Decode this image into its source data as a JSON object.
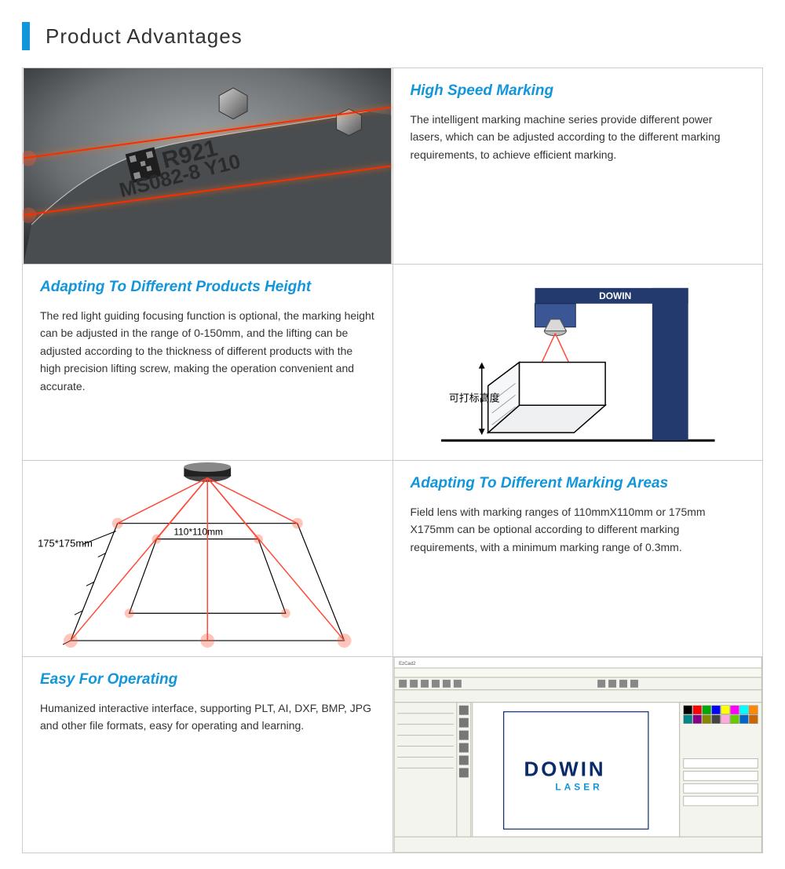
{
  "page_title": "Product Advantages",
  "colors": {
    "accent_blue": "#1296db",
    "heading_blue": "#1296db",
    "body_text": "#333333",
    "border": "#cccccc",
    "laser_red": "#ff2a00",
    "metal_gray": "#6b6f72",
    "machine_navy": "#1a2a55",
    "soft_bg": "#f4f4ee"
  },
  "features": [
    {
      "title": "High Speed Marking",
      "body": "The intelligent marking machine series provide different power lasers, which can be adjusted according to the different marking requirements, to achieve efficient marking."
    },
    {
      "title": "Adapting To Different Products Height",
      "body": "The red light guiding focusing function is optional, the marking height can be adjusted in the range of 0-150mm, and the lifting can be adjusted according to the thickness of different products with the high precision lifting screw, making the operation convenient and accurate."
    },
    {
      "title": "Adapting To Different Marking Areas",
      "body": "Field lens with marking ranges of 110mmX110mm or 175mm X175mm can be optional according to different marking requirements, with a minimum marking range of 0.3mm."
    },
    {
      "title": "Easy For Operating",
      "body": "Humanized interactive interface, supporting PLT, AI, DXF, BMP, JPG and other file formats, easy for operating and learning."
    }
  ],
  "image1": {
    "engraved_lines": [
      "R921",
      "MS082-8 Y10"
    ],
    "qr_present": true
  },
  "image2": {
    "brand": "DOWIN",
    "label": "可打标高度",
    "height_range_mm": [
      0,
      150
    ]
  },
  "image3": {
    "outer_label": "175*175mm",
    "inner_label": "110*110mm",
    "min_mark_mm": 0.3
  },
  "image4": {
    "brand_main": "DOWIN",
    "brand_sub": "LASER",
    "window_title": "EzCad2",
    "palette": [
      "#000000",
      "#ff0000",
      "#00aa00",
      "#0000ff",
      "#ffff00",
      "#ff00ff",
      "#00ffff",
      "#ff8800",
      "#008888",
      "#880088",
      "#888800",
      "#444444",
      "#ffaadd",
      "#66cc00",
      "#0066cc",
      "#cc6600"
    ]
  }
}
